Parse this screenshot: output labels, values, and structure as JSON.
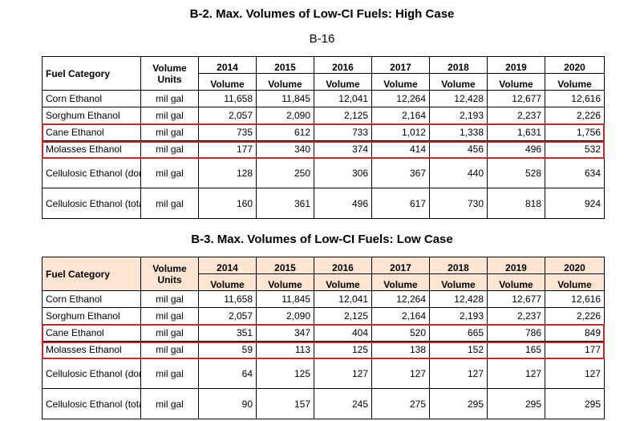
{
  "page_number": "B-16",
  "unit_header": "Volume Units",
  "category_header": "Fuel Category",
  "volume_label": "Volume",
  "years": [
    "2014",
    "2015",
    "2016",
    "2017",
    "2018",
    "2019",
    "2020"
  ],
  "tables": [
    {
      "title": "B-2. Max. Volumes of Low-CI Fuels:  High Case",
      "rows": [
        {
          "category": "Corn Ethanol",
          "unit": "mil gal",
          "values": [
            "11,658",
            "11,845",
            "12,041",
            "12,264",
            "12,428",
            "12,677",
            "12,616"
          ]
        },
        {
          "category": "Sorghum Ethanol",
          "unit": "mil gal",
          "values": [
            "2,057",
            "2,090",
            "2,125",
            "2,164",
            "2,193",
            "2,237",
            "2,226"
          ]
        },
        {
          "category": "Cane Ethanol",
          "unit": "mil gal",
          "values": [
            "735",
            "612",
            "733",
            "1,012",
            "1,338",
            "1,631",
            "1,756"
          ]
        },
        {
          "category": "Molasses Ethanol",
          "unit": "mil gal",
          "values": [
            "177",
            "340",
            "374",
            "414",
            "456",
            "496",
            "532"
          ]
        },
        {
          "category": "Cellulosic Ethanol (domestic)",
          "unit": "mil gal",
          "values": [
            "128",
            "250",
            "306",
            "367",
            "440",
            "528",
            "634"
          ]
        },
        {
          "category": "Cellulosic Ethanol (total)",
          "unit": "mil gal",
          "values": [
            "160",
            "361",
            "496",
            "617",
            "730",
            "818",
            "924"
          ]
        }
      ]
    },
    {
      "title": "B-3. Max. Volumes of Low-CI Fuels:  Low Case",
      "rows": [
        {
          "category": "Corn Ethanol",
          "unit": "mil gal",
          "values": [
            "11,658",
            "11,845",
            "12,041",
            "12,264",
            "12,428",
            "12,677",
            "12,616"
          ]
        },
        {
          "category": "Sorghum Ethanol",
          "unit": "mil gal",
          "values": [
            "2,057",
            "2,090",
            "2,125",
            "2,164",
            "2,193",
            "2,237",
            "2,226"
          ]
        },
        {
          "category": "Cane Ethanol",
          "unit": "mil gal",
          "values": [
            "351",
            "347",
            "404",
            "520",
            "665",
            "786",
            "849"
          ]
        },
        {
          "category": "Molasses Ethanol",
          "unit": "mil gal",
          "values": [
            "59",
            "113",
            "125",
            "138",
            "152",
            "165",
            "177"
          ]
        },
        {
          "category": "Cellulosic Ethanol (domestic)",
          "unit": "mil gal",
          "values": [
            "64",
            "125",
            "127",
            "127",
            "127",
            "127",
            "127"
          ]
        },
        {
          "category": "Cellulosic Ethanol (total)",
          "unit": "mil gal",
          "values": [
            "90",
            "157",
            "245",
            "275",
            "295",
            "295",
            "295"
          ]
        }
      ]
    }
  ],
  "colors": {
    "highlight_border": "#c0272d",
    "low_case_header_bg": "#fde5d2"
  }
}
